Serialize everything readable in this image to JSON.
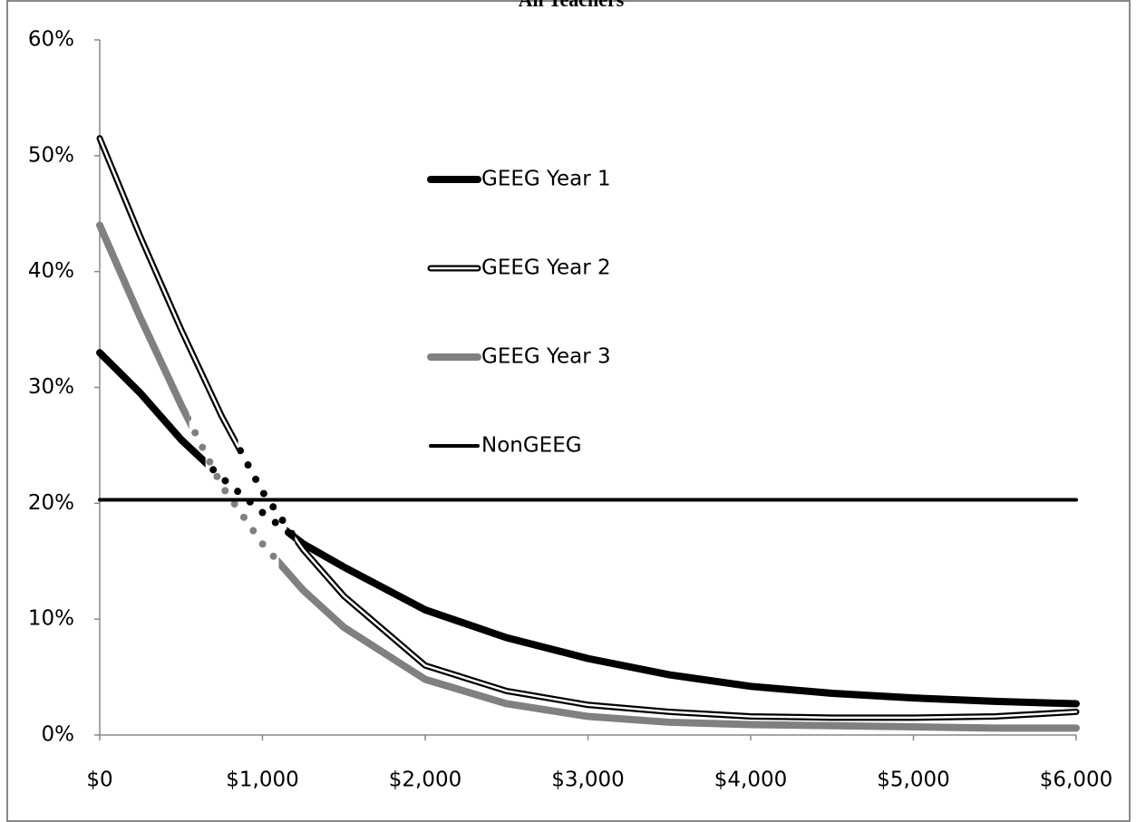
{
  "chart_data": {
    "type": "line",
    "title": "All Teachers",
    "x": [
      0,
      250,
      500,
      750,
      1000,
      1250,
      1500,
      2000,
      2500,
      3000,
      3500,
      4000,
      4500,
      5000,
      5500,
      6000
    ],
    "series": [
      {
        "name": "GEEG Year 1",
        "color": "#000000",
        "style": "solid",
        "dotted": [
          650,
          1150
        ],
        "values": [
          33,
          29.5,
          25.5,
          22.2,
          19.2,
          16.5,
          14.5,
          10.8,
          8.4,
          6.6,
          5.2,
          4.2,
          3.6,
          3.2,
          2.9,
          2.7
        ]
      },
      {
        "name": "GEEG Year 2",
        "color": "#000000",
        "style": "double",
        "dotted": [
          850,
          1200
        ],
        "values": [
          51.5,
          43,
          35,
          27.5,
          21,
          16,
          12,
          6,
          3.8,
          2.6,
          2,
          1.6,
          1.5,
          1.5,
          1.6,
          2.0
        ]
      },
      {
        "name": "GEEG Year 3",
        "color": "#808080",
        "style": "solid",
        "dotted": [
          550,
          1100
        ],
        "values": [
          44,
          36,
          28.5,
          21.5,
          16.5,
          12.5,
          9.3,
          4.8,
          2.7,
          1.6,
          1.1,
          0.9,
          0.8,
          0.7,
          0.6,
          0.6
        ]
      },
      {
        "name": "NonGEEG",
        "color": "#000000",
        "style": "thin",
        "values": [
          20.3,
          20.3,
          20.3,
          20.3,
          20.3,
          20.3,
          20.3,
          20.3,
          20.3,
          20.3,
          20.3,
          20.3,
          20.3,
          20.3,
          20.3,
          20.3
        ]
      }
    ],
    "xlim": [
      0,
      6000
    ],
    "xticks": [
      {
        "value": 0,
        "label": "$0"
      },
      {
        "value": 1000,
        "label": "$1,000"
      },
      {
        "value": 2000,
        "label": "$2,000"
      },
      {
        "value": 3000,
        "label": "$3,000"
      },
      {
        "value": 4000,
        "label": "$4,000"
      },
      {
        "value": 5000,
        "label": "$5,000"
      },
      {
        "value": 6000,
        "label": "$6,000"
      }
    ],
    "ylim": [
      0,
      60
    ],
    "yticks": [
      {
        "value": 0,
        "label": "0%"
      },
      {
        "value": 10,
        "label": "10%"
      },
      {
        "value": 20,
        "label": "20%"
      },
      {
        "value": 30,
        "label": "30%"
      },
      {
        "value": 40,
        "label": "40%"
      },
      {
        "value": 50,
        "label": "50%"
      },
      {
        "value": 60,
        "label": "60%"
      }
    ],
    "legend": "inside-top"
  }
}
